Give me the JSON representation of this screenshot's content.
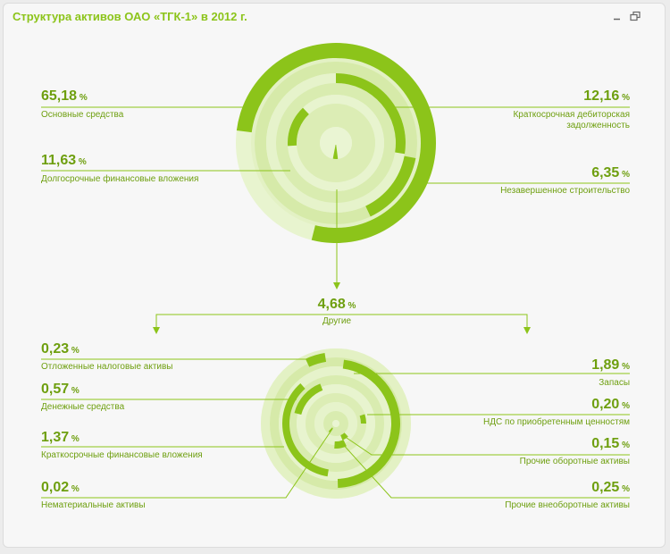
{
  "window": {
    "title": "Структура активов ОАО «ТГК-1» в 2012 г.",
    "minimize_icon": "minimize-icon",
    "restore_icon": "restore-icon"
  },
  "colors": {
    "accent": "#8cc41a",
    "track": "#ddeeb8",
    "track_light": "#e8f4cf",
    "ring_bg": "#d4e9a6",
    "text": "#6e9f0f",
    "line": "#8cc41a"
  },
  "chart_data": [
    {
      "type": "radial-bar",
      "unit": "%",
      "series": [
        {
          "label": "Основные средства",
          "value": 65.18,
          "display": "65,18"
        },
        {
          "label": "Краткосрочная дебиторская задолженность",
          "display_lines": [
            "Краткосрочная дебиторская",
            "задолженность"
          ],
          "value": 12.16,
          "display": "12,16"
        },
        {
          "label": "Долгосрочные финансовые вложения",
          "value": 11.63,
          "display": "11,63"
        },
        {
          "label": "Незавершенное строительство",
          "value": 6.35,
          "display": "6,35"
        },
        {
          "label": "Другие",
          "value": 4.68,
          "display": "4,68"
        }
      ]
    },
    {
      "type": "radial-bar",
      "unit": "%",
      "series": [
        {
          "label": "Отложенные налоговые активы",
          "value": 0.23,
          "display": "0,23"
        },
        {
          "label": "Запасы",
          "value": 1.89,
          "display": "1,89"
        },
        {
          "label": "Денежные средства",
          "value": 0.57,
          "display": "0,57"
        },
        {
          "label": "НДС по приобретенным ценностям",
          "value": 0.2,
          "display": "0,20"
        },
        {
          "label": "Краткосрочные финансовые вложения",
          "value": 1.37,
          "display": "1,37"
        },
        {
          "label": "Прочие оборотные активы",
          "value": 0.15,
          "display": "0,15"
        },
        {
          "label": "Нематериальные активы",
          "value": 0.02,
          "display": "0,02"
        },
        {
          "label": "Прочие внеоборотные активы",
          "value": 0.25,
          "display": "0,25"
        }
      ]
    }
  ]
}
